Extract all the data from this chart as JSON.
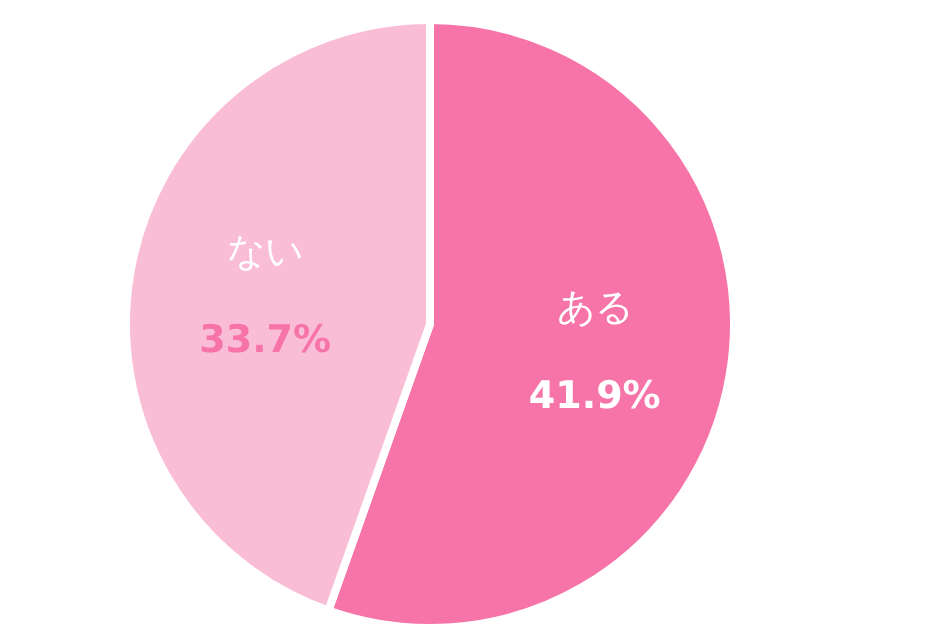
{
  "chart_data": {
    "type": "pie",
    "categories": [
      "ある",
      "ない"
    ],
    "values": [
      41.9,
      33.7
    ],
    "colors": [
      "#f774a8",
      "#f9bdd6"
    ],
    "value_labels": [
      "41.9%",
      "33.7%"
    ]
  }
}
